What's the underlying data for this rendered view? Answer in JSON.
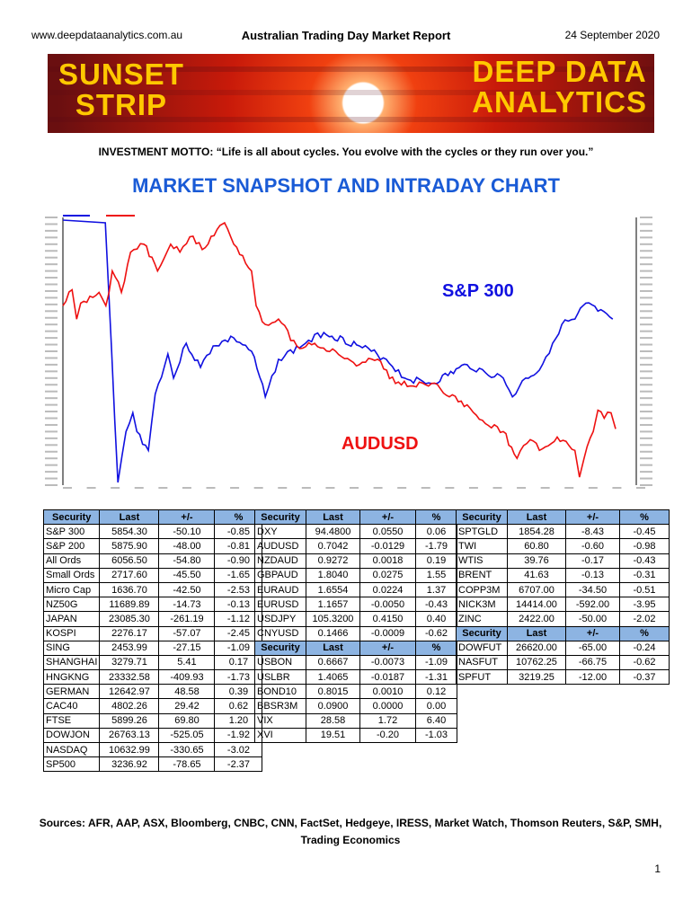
{
  "header": {
    "site": "www.deepdataanalytics.com.au",
    "title": "Australian Trading Day Market Report",
    "date": "24 September 2020"
  },
  "banner": {
    "left_line1": "SUNSET",
    "left_line2": "STRIP",
    "right_line1": "DEEP DATA",
    "right_line2": "ANALYTICS"
  },
  "motto": {
    "label": "INVESTMENT MOTTO:",
    "text": "“Life is all about cycles. You evolve with the cycles or they run over you.”"
  },
  "section_title": "MARKET SNAPSHOT AND INTRADAY CHART",
  "colors": {
    "sp300": "#1010e0",
    "audusd": "#ee1111",
    "header_fill": "#8db4e2",
    "title": "#1a5bd6"
  },
  "chart_data": {
    "type": "line",
    "title": "",
    "xlabel": "",
    "ylabel": "",
    "xlim": [
      0,
      100
    ],
    "ylim": [
      0,
      100
    ],
    "note": "relative intraday level (axis ticks illegible)",
    "series": [
      {
        "name": "S&P 300",
        "label": "S&P 300",
        "color": "#1010e0",
        "x": [
          0,
          7.4,
          9.6,
          11,
          12.2,
          12.9,
          14.9,
          16.1,
          18.3,
          19.3,
          21.5,
          24,
          26.2,
          29.8,
          32.9,
          35.3,
          37.6,
          42.3,
          45.5,
          51.7,
          56.4,
          59.6,
          64.3,
          70.5,
          73.7,
          76.8,
          78.4,
          80.7,
          83.1,
          85.4,
          87,
          89.3,
          91.2,
          93.3,
          95.9
        ],
        "y": [
          99,
          98,
          1,
          20,
          27,
          20,
          13,
          34,
          49,
          40,
          53,
          44,
          52,
          55,
          50,
          33,
          47,
          53,
          57,
          52,
          47,
          40,
          38,
          45,
          42,
          40,
          33,
          40,
          43,
          53,
          60,
          62,
          68,
          65,
          62
        ]
      },
      {
        "name": "AUDUSD",
        "label": "AUDUSD",
        "color": "#ee1111",
        "x": [
          0,
          1.6,
          2.4,
          3.1,
          6.3,
          7.5,
          8.6,
          10.2,
          11.8,
          14.1,
          16.5,
          18.8,
          20.4,
          22.7,
          24.3,
          27.4,
          28.2,
          29.8,
          32.9,
          33.7,
          35.3,
          37.6,
          40.8,
          43.9,
          48.6,
          51.7,
          54.9,
          58,
          61.1,
          64.3,
          67.4,
          70.5,
          73.7,
          76.8,
          79.2,
          81.5,
          83.1,
          86.2,
          89.3,
          90.1,
          90.9,
          92.5,
          93.3,
          94.4,
          95.6,
          96.4
        ],
        "y": [
          67,
          73,
          62,
          68,
          72,
          67,
          80,
          72,
          87,
          90,
          80,
          90,
          87,
          93,
          88,
          97,
          98,
          90,
          80,
          67,
          60,
          62,
          52,
          53,
          48,
          45,
          47,
          38,
          37,
          38,
          33,
          30,
          23,
          20,
          10,
          17,
          13,
          18,
          13,
          3,
          10,
          20,
          28,
          25,
          27,
          21
        ]
      }
    ]
  },
  "tables": {
    "columns": [
      "Security",
      "Last",
      "+/-",
      "%"
    ],
    "left": [
      [
        "S&P 300",
        "5854.30",
        "-50.10",
        "-0.85"
      ],
      [
        "S&P 200",
        "5875.90",
        "-48.00",
        "-0.81"
      ],
      [
        "All Ords",
        "6056.50",
        "-54.80",
        "-0.90"
      ],
      [
        "Small Ords",
        "2717.60",
        "-45.50",
        "-1.65"
      ],
      [
        "Micro Cap",
        "1636.70",
        "-42.50",
        "-2.53"
      ],
      [
        "NZ50G",
        "11689.89",
        "-14.73",
        "-0.13"
      ],
      [
        "JAPAN",
        "23085.30",
        "-261.19",
        "-1.12"
      ],
      [
        "KOSPI",
        "2276.17",
        "-57.07",
        "-2.45"
      ],
      [
        "SING",
        "2453.99",
        "-27.15",
        "-1.09"
      ],
      [
        "SHANGHAI",
        "3279.71",
        "5.41",
        "0.17"
      ],
      [
        "HNGKNG",
        "23332.58",
        "-409.93",
        "-1.73"
      ],
      [
        "GERMAN",
        "12642.97",
        "48.58",
        "0.39"
      ],
      [
        "CAC40",
        "4802.26",
        "29.42",
        "0.62"
      ],
      [
        "FTSE",
        "5899.26",
        "69.80",
        "1.20"
      ],
      [
        "DOWJON",
        "26763.13",
        "-525.05",
        "-1.92"
      ],
      [
        "NASDAQ",
        "10632.99",
        "-330.65",
        "-3.02"
      ],
      [
        "SP500",
        "3236.92",
        "-78.65",
        "-2.37"
      ]
    ],
    "middle_fx": [
      [
        "DXY",
        "94.4800",
        "0.0550",
        "0.06"
      ],
      [
        "AUDUSD",
        "0.7042",
        "-0.0129",
        "-1.79"
      ],
      [
        "NZDAUD",
        "0.9272",
        "0.0018",
        "0.19"
      ],
      [
        "GBPAUD",
        "1.8040",
        "0.0275",
        "1.55"
      ],
      [
        "EURAUD",
        "1.6554",
        "0.0224",
        "1.37"
      ],
      [
        "EURUSD",
        "1.1657",
        "-0.0050",
        "-0.43"
      ],
      [
        "USDJPY",
        "105.3200",
        "0.4150",
        "0.40"
      ],
      [
        "CNYUSD",
        "0.1466",
        "-0.0009",
        "-0.62"
      ]
    ],
    "middle_rates": [
      [
        "USBON",
        "0.6667",
        "-0.0073",
        "-1.09"
      ],
      [
        "USLBR",
        "1.4065",
        "-0.0187",
        "-1.31"
      ],
      [
        "BOND10",
        "0.8015",
        "0.0010",
        "0.12"
      ],
      [
        "BBSR3M",
        "0.0900",
        "0.0000",
        "0.00"
      ],
      [
        "VIX",
        "28.58",
        "1.72",
        "6.40"
      ],
      [
        "XVI",
        "19.51",
        "-0.20",
        "-1.03"
      ]
    ],
    "right_commod": [
      [
        "SPTGLD",
        "1854.28",
        "-8.43",
        "-0.45"
      ],
      [
        "TWI",
        "60.80",
        "-0.60",
        "-0.98"
      ],
      [
        "WTIS",
        "39.76",
        "-0.17",
        "-0.43"
      ],
      [
        "BRENT",
        "41.63",
        "-0.13",
        "-0.31"
      ],
      [
        "COPP3M",
        "6707.00",
        "-34.50",
        "-0.51"
      ],
      [
        "NICK3M",
        "14414.00",
        "-592.00",
        "-3.95"
      ],
      [
        "ZINC",
        "2422.00",
        "-50.00",
        "-2.02"
      ]
    ],
    "right_futures": [
      [
        "DOWFUT",
        "26620.00",
        "-65.00",
        "-0.24"
      ],
      [
        "NASFUT",
        "10762.25",
        "-66.75",
        "-0.62"
      ],
      [
        "SPFUT",
        "3219.25",
        "-12.00",
        "-0.37"
      ]
    ]
  },
  "sources": "Sources: AFR, AAP, ASX,  Bloomberg, CNBC, CNN, FactSet, Hedgeye, IRESS, Market Watch, Thomson Reuters, S&P, SMH, Trading Economics",
  "page_number": "1"
}
